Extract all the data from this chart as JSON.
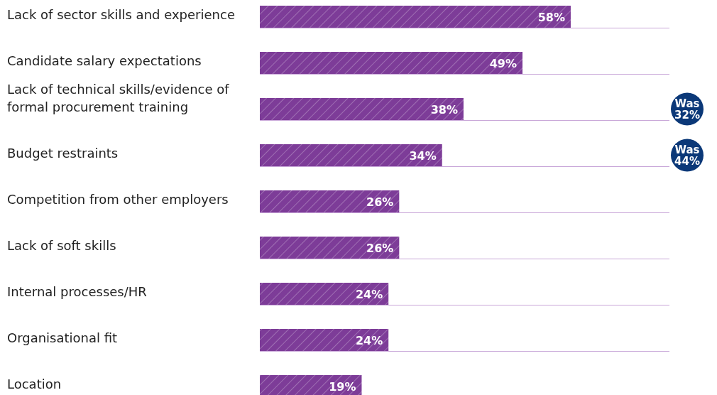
{
  "chart_data": {
    "type": "bar",
    "orientation": "horizontal",
    "categories": [
      "Lack of sector skills and experience",
      "Candidate salary expectations",
      "Lack of technical skills/evidence of formal procurement training",
      "Budget restraints",
      "Competition from other employers",
      "Lack of soft skills",
      "Internal processes/HR",
      "Organisational fit",
      "Location"
    ],
    "values": [
      58,
      49,
      38,
      34,
      26,
      26,
      24,
      24,
      19
    ],
    "value_labels": [
      "58%",
      "49%",
      "38%",
      "34%",
      "26%",
      "26%",
      "24%",
      "24%",
      "19%"
    ],
    "color": "#7d3c98",
    "grid": "y",
    "annotations": [
      "Was 32%",
      "Was 44%"
    ]
  }
}
